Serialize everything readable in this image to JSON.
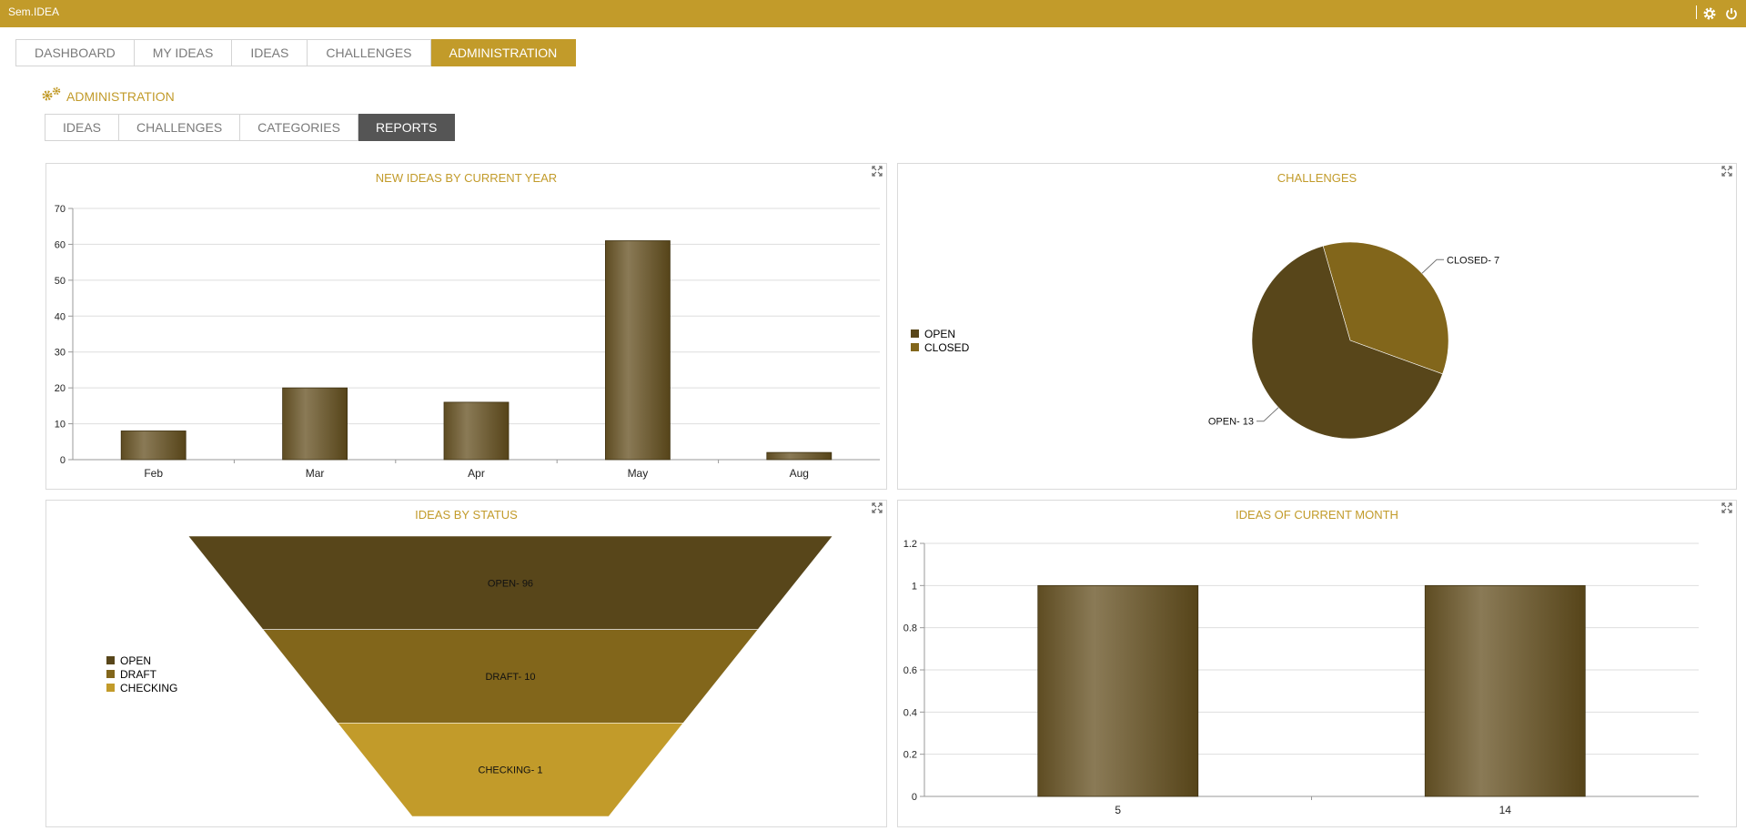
{
  "app": {
    "title": "Sem.IDEA"
  },
  "main_tabs": [
    "DASHBOARD",
    "MY IDEAS",
    "IDEAS",
    "CHALLENGES",
    "ADMINISTRATION"
  ],
  "section_title": "ADMINISTRATION",
  "sub_tabs": [
    "IDEAS",
    "CHALLENGES",
    "CATEGORIES",
    "REPORTS"
  ],
  "colors": {
    "accent": "#c29b2a",
    "bar": "#6b5a33",
    "dark": "#58461a",
    "mid": "#82661b",
    "light": "#c29b2a"
  },
  "icons": {
    "settings": "gear-icon",
    "power": "power-icon",
    "admin": "gears-icon",
    "expand": "expand-icon"
  },
  "chart_data": [
    {
      "type": "bar",
      "title": "NEW IDEAS BY CURRENT YEAR",
      "categories": [
        "Feb",
        "Mar",
        "Apr",
        "May",
        "Aug"
      ],
      "values": [
        8,
        20,
        16,
        61,
        2
      ],
      "ylim": [
        0,
        70
      ],
      "yticks": [
        0,
        10,
        20,
        30,
        40,
        50,
        60,
        70
      ],
      "grid": true
    },
    {
      "type": "pie",
      "title": "CHALLENGES",
      "slices": [
        {
          "name": "OPEN",
          "value": 13,
          "label": "OPEN- 13",
          "color": "#58461a"
        },
        {
          "name": "CLOSED",
          "value": 7,
          "label": "CLOSED- 7",
          "color": "#82661b"
        }
      ],
      "legend": "left"
    },
    {
      "type": "funnel",
      "title": "IDEAS BY STATUS",
      "stages": [
        {
          "name": "OPEN",
          "value": 96,
          "label": "OPEN- 96",
          "color": "#58461a"
        },
        {
          "name": "DRAFT",
          "value": 10,
          "label": "DRAFT- 10",
          "color": "#82661b"
        },
        {
          "name": "CHECKING",
          "value": 1,
          "label": "CHECKING- 1",
          "color": "#c29b2a"
        }
      ],
      "legend": "left"
    },
    {
      "type": "bar",
      "title": "IDEAS OF CURRENT MONTH",
      "categories": [
        "5",
        "14"
      ],
      "values": [
        1,
        1
      ],
      "ylim": [
        0,
        1.2
      ],
      "yticks": [
        "0",
        "0.2",
        "0.4",
        "0.6",
        "0.8",
        "1",
        "1.2"
      ],
      "grid": true
    }
  ]
}
